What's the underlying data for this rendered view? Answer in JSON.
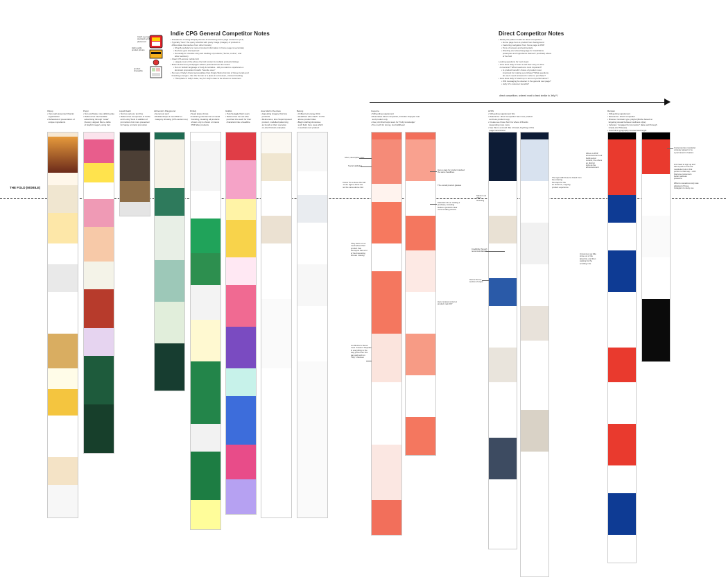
{
  "indie_notes": {
    "title": "Indie CPG General Competitor Notes",
    "body": "• Prevalence of using Shopify themes & structuring home page content as (1-2)\n• Typically \"hero\" the query shortlist with pretty image (imagery of product to\n  differentiate themselves from other brands)\n     • Shopify website's is most of product information in home page is secondary\n     • Reviews gets interspersed\n     • Generally for creative story-led retelling of products (\"focus, motive\", and\n       other sections)\n• Clear CTA across mobile fold\n     • Largely most of the above the fold content is multiple products listings\n• Brand & discovery webpages adhere pictorial across the board\n     • Not on holistic language or body & narrative - did you want to experience a\n       dominant proposition brand's \"favorite ones\"\n• Not sure if Jelly's brand personalities than Single Skims but lots of those trends and\n  branding emerges - like the human or a place in a foreseen, various branding\n     • Third place in Jelly's case, key for Jelly's case to be shown to customers"
  },
  "direct_notes": {
    "title": "Direct Competitor Notes",
    "body": "• Mostly the pattern holds for direct competitors\n     • Home page hero is product hero background\n     • Featuring navigation from home page to PDP\n     • Tons of reviews and testimonials\n     • Wording and visual language for trust/claims\n       (examples and ingredients claimed / provided) above\n       of the fold\n\nLooking questions for next steps:\n• How does Jelly IV want to tell their story to drive\n  conversion? What needs are most important?\n     • Is product benefit / choice of product most\n       important for making a purchase? What questions\n       do users need answered in order to purchase?\n• How does Jelly IV stack up in terms of performance?\n     • Will messaging be cleaner in the general new page?\n     • Jelly IV's customer benefits?"
  },
  "sticker_notes": {
    "top": "Catch eye tag with\nstandard symbol\nplacement",
    "mid": "High quality\nproduct photos",
    "bottom": "product\nshoppable"
  },
  "fold_label": "THE FOLD (MOBILE)",
  "direct_arrow_label": "direct competitors; ordered most to least similar to Jelly IV",
  "columns": [
    {
      "name": "Olipop",
      "note": "Olipop\n• Very well presented Vitamin\n  organization\n• Rehearsal of presentation of\n  unique ingredients"
    },
    {
      "name": "Poppi",
      "note": "Poppi\n• Not overflowly, note definite play\n• References intermediate\n  advertising through \"scale\"\n  (boxes), aligned Mem+ table\n  of playful imagery using font"
    },
    {
      "name": "Liquid Death",
      "note": "Liquid Death\n• Not too serious; text fine\n• References component of Circle\n  and Lucky Tools in addition of\n  promotions but more presented\n  for happy on-hand promotion"
    },
    {
      "name": "Alchemist's Playground",
      "note": "Alchemist's Playground\n• Generous well\n• Relationships of own PDP on\n  category showing (CTA section too)"
    },
    {
      "name": "Drinkly",
      "note": "Drinkly\n• Need place shows\n• Featuring intention list of visual\n  branding, Heading all products\n  shown only is shown on below\n  PDP after products"
    },
    {
      "name": "Giddist",
      "note": "Giddist\n• Punchy jiggly flash users\n• References too are also\n  punched into each for their\n  characters like a headline"
    },
    {
      "name": "Jose Martin Overview",
      "note": "Jose Martin Overview\n• Appealing imagery that few\n  products\n• References, also Superimposed\n  product, modelled patterning\n  as found on their overview\n  on-site Product examples"
    },
    {
      "name": "Belong",
      "note": "Belong\n• Unflavored energy drink\n• Headlines also clash / 3 CTA\n  above product titles\n• Begin starting showcase\n  such field, here uses which\n  is sections text product"
    },
    {
      "name": "Cayenne",
      "note": "Cayenne\n• Still getting supplement\n• Resonates direct competitor, includes shopped real\n  and product only\n• Use print that helps team for \"Fully knowledge\"\n• Too much for strong, low buildhead"
    },
    {
      "name": "AVKN",
      "note": "AVKN\n• Still getting supplement hits\n• Relevance: direct competitor has more product\n  and less product copy\n• Create see those Sort Ins where it Brands\n  depending more more\n• See this is a crowd: like it brand; Anything of this\n  page hierarchical"
    },
    {
      "name": "Ramjam",
      "note": "Ramjam\n• Still getting supplement\n• Relevance: direct competitor\n• Browser rundown type, playful (Ruthe based on\n  targeting casual between wellness style)\n• Includes: \"engaged for promotion\" (lake well through\n  simply and Shopee)\n• Colorful & typography focused and bright\n  landing/shopping"
    }
  ],
  "annotations": {
    "a1": "Short, descriptive copy",
    "a2": "Social validation",
    "a3": "Colour It's a above the fold\n-to-da- agers; these are\nnot the same above fold",
    "a4": "They went out so\nmuch about their\nproduct that\nthe layout has a lot\nof the Interesting\nbits are missing",
    "a5": "Jon Buzzer's Ruma\nmost \"Custom\" Repeats\nin everything to the\nway prime then this\npay and posh on\n\"Buy\" checkout",
    "a6": "Here a tags for product stacked\nthe same headlines",
    "a7": "The overall product glasses",
    "a8": "Selected info on making a\npurchase, including\nfeatures products clear\nmore scrolling access",
    "a9": "Here reviews center at\nproduct main DIY",
    "a10": "Stand-in as\neffect\nchoosing",
    "a11": "Credibility through\nrecommendations",
    "a12": "Here's the fun\nsection of steps",
    "a13": "The logic with those lie brand from\nthe ordering\nthe steps for the\nan brand on, ongoing\nproduct experience",
    "a14": "Where is PDP\nannouncement out\nbuild period\ncontent, the others\nan distinct\nstyle as the\nannouncement",
    "a15": "Uncommon as little\nsince out of the\nlatest list, and then\nswiping for the\nscrolling / Fix",
    "a16": "Contemporary newsletter\nuniquely appear to be\na permanent in feature",
    "a17": "Link need to sign up and\nhas a quirk to how the\nnewsletter lets in that\nportion to that way -- with\nthat tone consumers\nbetter wellness\npresence\n\nWhat to sometimes why was\nadjusted of those\nInstagram to study use"
  }
}
